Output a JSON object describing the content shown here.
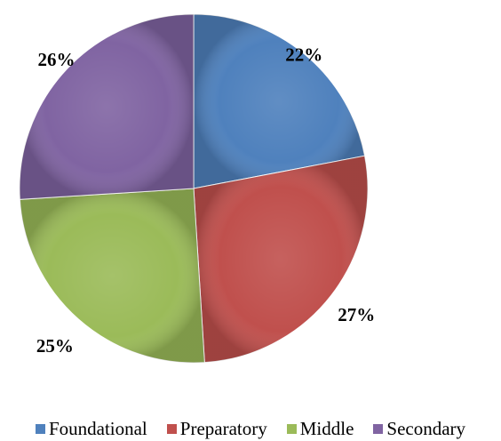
{
  "chart_data": {
    "type": "pie",
    "title": "",
    "categories": [
      "Foundational",
      "Preparatory",
      "Middle",
      "Secondary"
    ],
    "values": [
      22,
      27,
      25,
      26
    ],
    "data_labels": [
      "22%",
      "27%",
      "25%",
      "26%"
    ],
    "colors": [
      "#4f81bd",
      "#c0504d",
      "#9bbb59",
      "#8064a2"
    ],
    "legend_position": "bottom",
    "start_angle": "12 o'clock",
    "direction": "clockwise"
  }
}
